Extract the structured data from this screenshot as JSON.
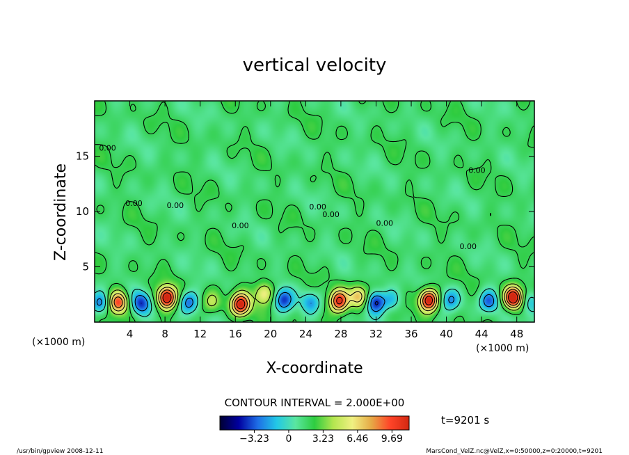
{
  "chart_data": {
    "type": "heatmap",
    "title": "vertical velocity",
    "xlabel": "X-coordinate",
    "ylabel": "Z-coordinate",
    "x_unit": "(×1000 m)",
    "y_unit": "(×1000 m)",
    "xlim": [
      0,
      50
    ],
    "ylim": [
      0,
      20
    ],
    "x_ticks": [
      4,
      8,
      12,
      16,
      20,
      24,
      28,
      32,
      36,
      40,
      44,
      48
    ],
    "y_ticks": [
      5,
      10,
      15
    ],
    "contour_interval_text": "CONTOUR INTERVAL = 2.000E+00",
    "time_label": "t=9201 s",
    "colorbar": {
      "ticks": [
        -3.23,
        0,
        3.23,
        6.46,
        9.69
      ],
      "tick_labels": [
        "−3.23",
        "0",
        "3.23",
        "6.46",
        "9.69"
      ],
      "range": [
        -6.46,
        11.3
      ],
      "colors": [
        "#000033",
        "#0000a0",
        "#1e6ee6",
        "#22c8e6",
        "#5ae6a0",
        "#2ecc40",
        "#b4e650",
        "#f0f082",
        "#e6aa46",
        "#ff4428",
        "#d22812"
      ]
    },
    "features": [
      {
        "x": 0.6,
        "z": 1.7,
        "w": -4.5
      },
      {
        "x": 2.7,
        "z": 1.8,
        "w": 8.0
      },
      {
        "x": 5.3,
        "z": 1.7,
        "w": -5.0
      },
      {
        "x": 8.2,
        "z": 2.2,
        "w": 10.5
      },
      {
        "x": 10.7,
        "z": 1.8,
        "w": -4.5
      },
      {
        "x": 13.3,
        "z": 1.8,
        "w": 3.0
      },
      {
        "x": 16.6,
        "z": 1.6,
        "w": 9.5
      },
      {
        "x": 19.3,
        "z": 2.6,
        "w": 5.0
      },
      {
        "x": 21.5,
        "z": 2.0,
        "w": -5.0
      },
      {
        "x": 24.6,
        "z": 1.8,
        "w": -3.5
      },
      {
        "x": 27.8,
        "z": 1.9,
        "w": 9.0
      },
      {
        "x": 30.0,
        "z": 2.3,
        "w": 6.0
      },
      {
        "x": 32.0,
        "z": 1.8,
        "w": -6.0
      },
      {
        "x": 33.8,
        "z": 2.0,
        "w": -3.0
      },
      {
        "x": 38.0,
        "z": 2.0,
        "w": 10.5
      },
      {
        "x": 40.5,
        "z": 2.0,
        "w": -3.5
      },
      {
        "x": 44.8,
        "z": 1.9,
        "w": -4.5
      },
      {
        "x": 47.6,
        "z": 2.2,
        "w": 11.0
      },
      {
        "x": 49.7,
        "z": 1.8,
        "w": -3.0
      }
    ]
  },
  "footer": {
    "left": "/usr/bin/gpview   2008-12-11",
    "right": "MarsCond_VelZ.nc@VelZ,x=0:50000,z=0:20000,t=9201"
  },
  "contour_label": "0.00"
}
